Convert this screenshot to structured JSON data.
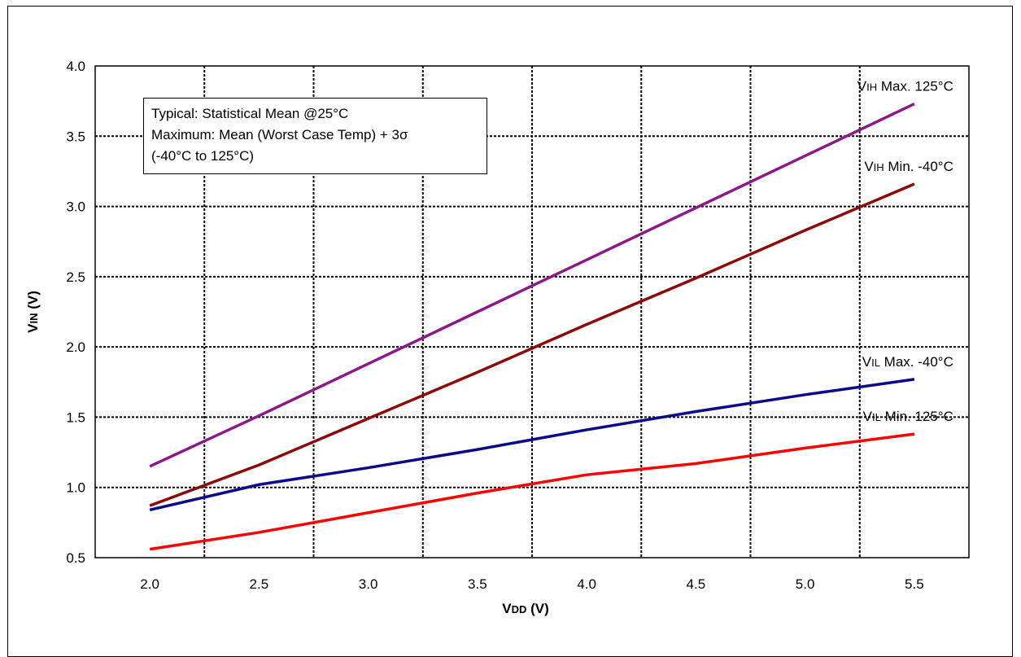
{
  "chart_data": {
    "type": "line",
    "xlabel_main": "V",
    "xlabel_sub": "DD",
    "xlabel_unit": " (V)",
    "ylabel_main": "V",
    "ylabel_sub": "IN",
    "ylabel_unit": " (V)",
    "xlim": [
      1.75,
      5.75
    ],
    "ylim": [
      0.5,
      4.0
    ],
    "x_ticks": [
      "2.0",
      "2.5",
      "3.0",
      "3.5",
      "4.0",
      "4.5",
      "5.0",
      "5.5"
    ],
    "y_ticks": [
      "0.5",
      "1.0",
      "1.5",
      "2.0",
      "2.5",
      "3.0",
      "3.5",
      "4.0"
    ],
    "grid": true,
    "note": {
      "line1": "Typical: Statistical Mean @25°C",
      "line2": "Maximum: Mean (Worst Case Temp) + 3σ",
      "line3": "(-40°C to 125°C)"
    },
    "series": [
      {
        "label_main": "V",
        "label_sub": "IH",
        "label_rest": " Max. 125°C",
        "color": "#8B1A89",
        "x": [
          2.0,
          2.5,
          3.0,
          3.5,
          4.0,
          4.5,
          5.0,
          5.5
        ],
        "y": [
          1.15,
          1.51,
          1.88,
          2.25,
          2.62,
          2.99,
          3.36,
          3.73
        ]
      },
      {
        "label_main": "V",
        "label_sub": "IH",
        "label_rest": " Min. -40°C",
        "color": "#8B0A0A",
        "x": [
          2.0,
          2.5,
          3.0,
          3.5,
          4.0,
          4.5,
          5.0,
          5.5
        ],
        "y": [
          0.87,
          1.16,
          1.49,
          1.82,
          2.16,
          2.49,
          2.83,
          3.16
        ]
      },
      {
        "label_main": "V",
        "label_sub": "IL",
        "label_rest": " Max. -40°C",
        "color": "#0A0A8B",
        "x": [
          2.0,
          2.5,
          3.0,
          3.5,
          4.0,
          4.5,
          5.0,
          5.5
        ],
        "y": [
          0.84,
          1.02,
          1.14,
          1.27,
          1.41,
          1.54,
          1.66,
          1.77
        ]
      },
      {
        "label_main": "V",
        "label_sub": "IL",
        "label_rest": " Min. 125°C",
        "color": "#FF0000",
        "x": [
          2.0,
          2.5,
          3.0,
          3.5,
          4.0,
          4.5,
          5.0,
          5.5
        ],
        "y": [
          0.56,
          0.68,
          0.82,
          0.96,
          1.09,
          1.17,
          1.28,
          1.38
        ]
      }
    ]
  }
}
